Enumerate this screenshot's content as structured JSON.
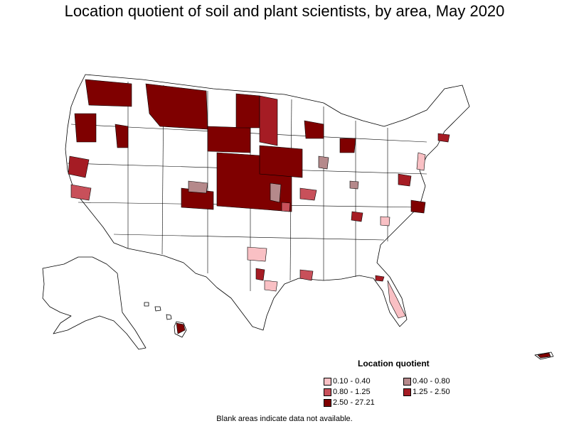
{
  "title": "Location quotient of soil and plant scientists, by area, May 2020",
  "legend": {
    "title": "Location quotient",
    "items": [
      {
        "label": "0.10 - 0.40",
        "color": "#f9c0c4"
      },
      {
        "label": "0.40 - 0.80",
        "color": "#b5898b"
      },
      {
        "label": "0.80 - 1.25",
        "color": "#c8505a"
      },
      {
        "label": "1.25 - 2.50",
        "color": "#a51c24"
      },
      {
        "label": "2.50 - 27.21",
        "color": "#7f0000"
      }
    ]
  },
  "footnote": "Blank areas indicate data not available.",
  "colors": {
    "background": "#ffffff",
    "boundary": "#000000",
    "no_data": "#ffffff"
  }
}
